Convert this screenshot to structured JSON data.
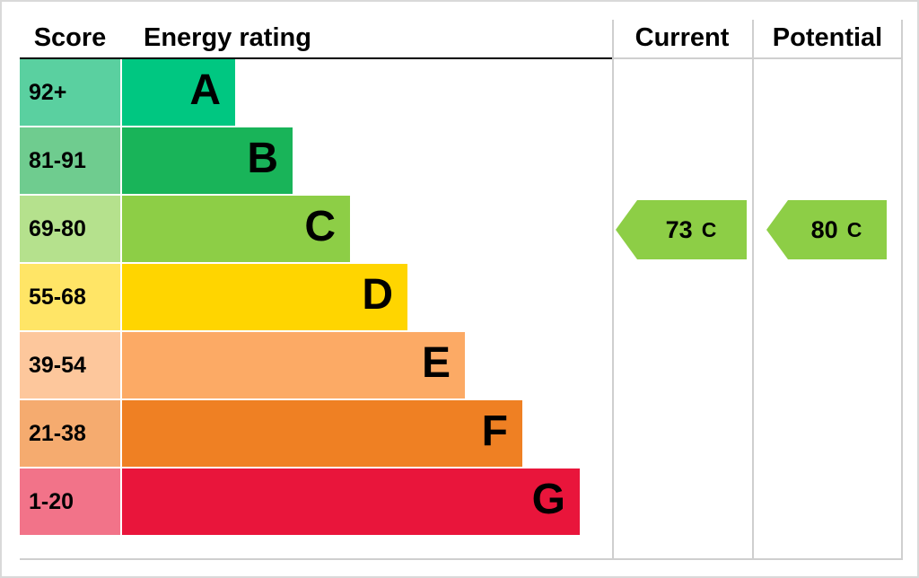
{
  "header": {
    "score": "Score",
    "energy_rating": "Energy rating",
    "current": "Current",
    "potential": "Potential"
  },
  "bands": [
    {
      "score": "92+",
      "letter": "A",
      "band_color": "#00c781",
      "score_color": "#5ad0a0"
    },
    {
      "score": "81-91",
      "letter": "B",
      "band_color": "#19b459",
      "score_color": "#6fcc8f"
    },
    {
      "score": "69-80",
      "letter": "C",
      "band_color": "#8dce46",
      "score_color": "#b5e18d"
    },
    {
      "score": "55-68",
      "letter": "D",
      "band_color": "#ffd500",
      "score_color": "#ffe566"
    },
    {
      "score": "39-54",
      "letter": "E",
      "band_color": "#fcaa65",
      "score_color": "#fdc79c"
    },
    {
      "score": "21-38",
      "letter": "F",
      "band_color": "#ef8023",
      "score_color": "#f5ab6f"
    },
    {
      "score": "1-20",
      "letter": "G",
      "band_color": "#e9153b",
      "score_color": "#f27389"
    }
  ],
  "current": {
    "value": "73",
    "letter": "C",
    "color": "#8dce46"
  },
  "potential": {
    "value": "80",
    "letter": "C",
    "color": "#8dce46"
  },
  "chart_data": {
    "type": "bar",
    "title": "Energy rating",
    "categories": [
      "A",
      "B",
      "C",
      "D",
      "E",
      "F",
      "G"
    ],
    "score_ranges": [
      "92+",
      "81-91",
      "69-80",
      "55-68",
      "39-54",
      "21-38",
      "1-20"
    ],
    "band_colors": [
      "#00c781",
      "#19b459",
      "#8dce46",
      "#ffd500",
      "#fcaa65",
      "#ef8023",
      "#e9153b"
    ],
    "bar_rank": [
      1,
      2,
      3,
      4,
      5,
      6,
      7
    ],
    "current": {
      "score": 73,
      "band": "C"
    },
    "potential": {
      "score": 80,
      "band": "C"
    },
    "legend_position": "none",
    "grid": false
  }
}
